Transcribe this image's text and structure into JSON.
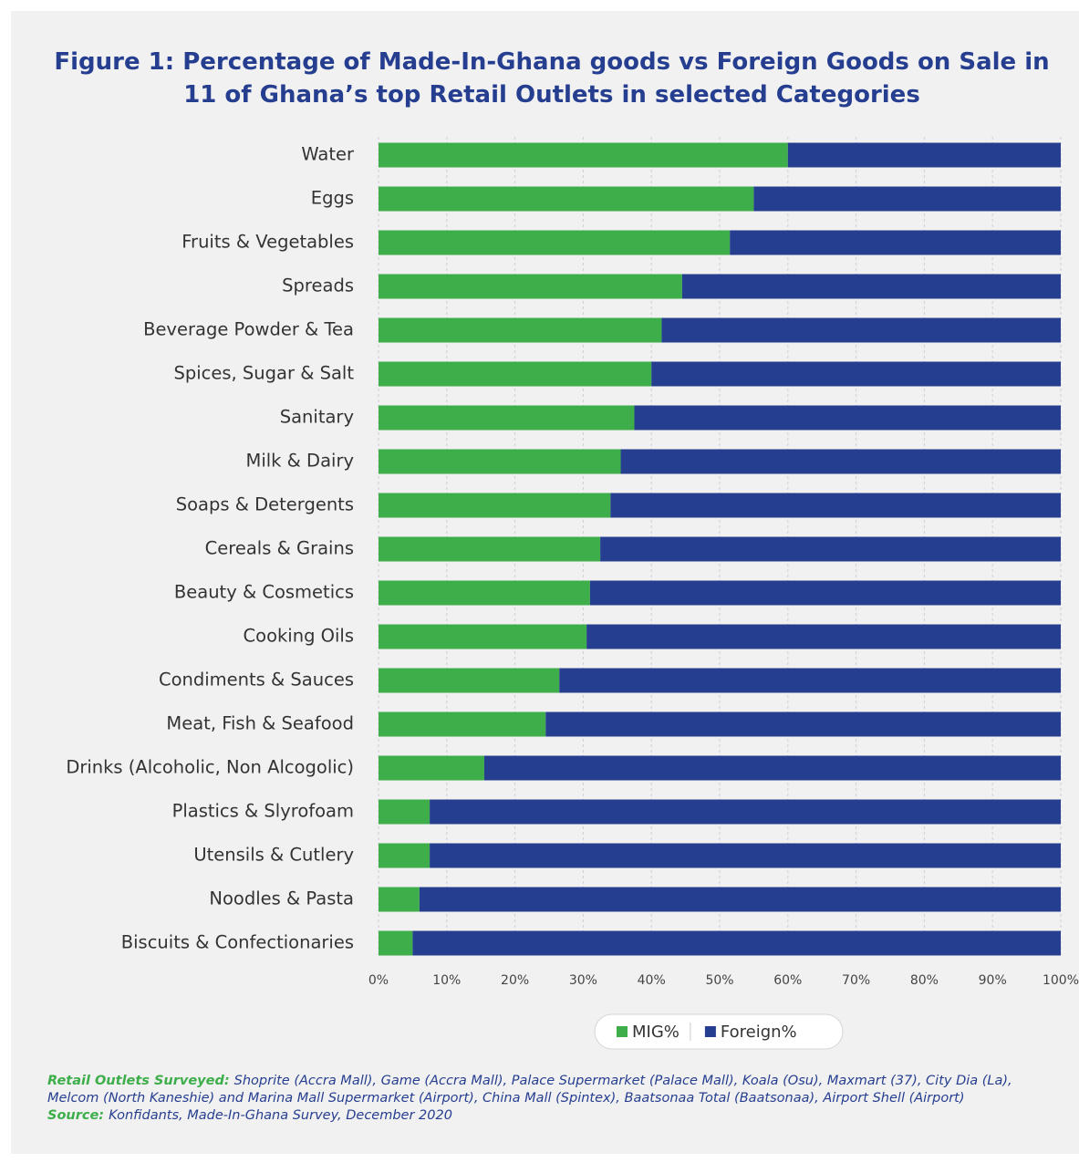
{
  "chart_data": {
    "type": "bar",
    "orientation": "horizontal",
    "stacked": true,
    "title_label": "Figure 1:",
    "title": "Percentage of Made-In-Ghana goods vs Foreign Goods on Sale in 11 of Ghana’s top Retail Outlets in selected Categories",
    "categories": [
      "Water",
      "Eggs",
      "Fruits & Vegetables",
      "Spreads",
      "Beverage Powder & Tea",
      "Spices, Sugar & Salt",
      "Sanitary",
      "Milk & Dairy",
      "Soaps & Detergents",
      "Cereals & Grains",
      "Beauty & Cosmetics",
      "Cooking Oils",
      "Condiments & Sauces",
      "Meat, Fish & Seafood",
      "Drinks (Alcoholic, Non Alcogolic)",
      "Plastics & Slyrofoam",
      "Utensils & Cutlery",
      "Noodles & Pasta",
      "Biscuits & Confectionaries"
    ],
    "series": [
      {
        "name": "MIG%",
        "color": "#3dae4a",
        "values": [
          60,
          55,
          51.5,
          44.5,
          41.5,
          40,
          37.5,
          35.5,
          34,
          32.5,
          31,
          30.5,
          26.5,
          24.5,
          15.5,
          7.5,
          7.5,
          6,
          5
        ]
      },
      {
        "name": "Foreign%",
        "color": "#263e8f",
        "values": [
          40,
          45,
          48.5,
          55.5,
          58.5,
          60,
          62.5,
          64.5,
          66,
          67.5,
          69,
          69.5,
          73.5,
          75.5,
          84.5,
          92.5,
          92.5,
          94,
          95
        ]
      }
    ],
    "xlim": [
      0,
      100
    ],
    "xticks": [
      {
        "value": 0,
        "label": "0%"
      },
      {
        "value": 10,
        "label": "10%"
      },
      {
        "value": 20,
        "label": "20%"
      },
      {
        "value": 30,
        "label": "30%"
      },
      {
        "value": 40,
        "label": "40%"
      },
      {
        "value": 50,
        "label": "50%"
      },
      {
        "value": 60,
        "label": "60%"
      },
      {
        "value": 70,
        "label": "70%"
      },
      {
        "value": 80,
        "label": "80%"
      },
      {
        "value": 90,
        "label": "90%"
      },
      {
        "value": 100,
        "label": "100%"
      }
    ],
    "grid": true,
    "legend": "bottom",
    "notes": [
      {
        "label": "Retail Outlets Surveyed:",
        "text": "Shoprite (Accra Mall), Game (Accra Mall), Palace Supermarket (Palace Mall), Koala (Osu), Maxmart (37), City Dia (La), Melcom (North Kaneshie) and Marina Mall Supermarket (Airport), China Mall (Spintex), Baatsonaa Total (Baatsonaa), Airport Shell (Airport)"
      },
      {
        "label": "Source:",
        "text": "Konfidants, Made-In-Ghana Survey, December 2020"
      }
    ]
  }
}
